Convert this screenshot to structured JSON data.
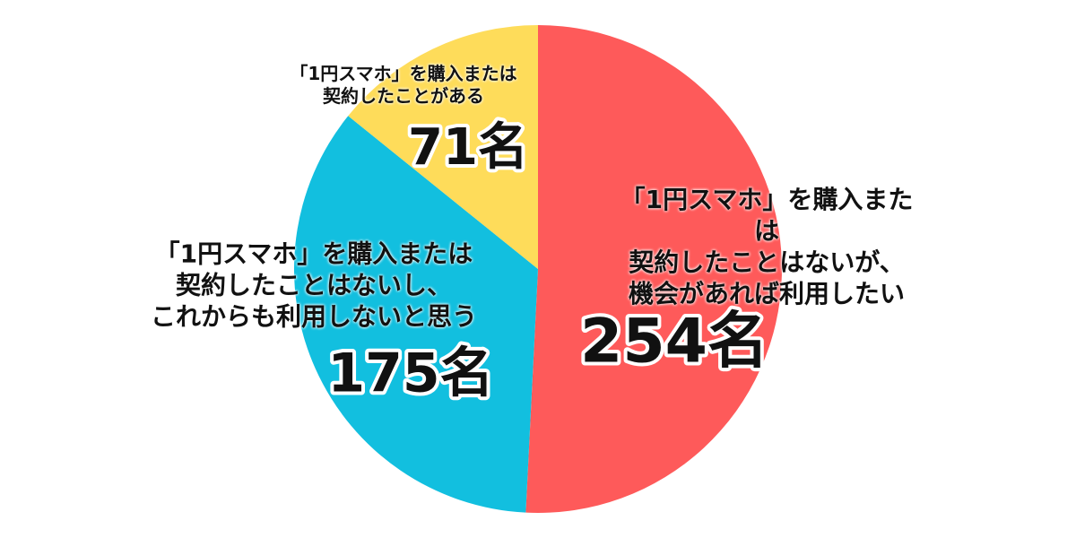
{
  "chart_data": {
    "type": "pie",
    "categories": [
      "「1円スマホ」を購入または\n契約したことはないが、\n機会があれば利用したい",
      "「1円スマホ」を購入または\n契約したことはないし、\nこれからも利用しないと思う",
      "「1円スマホ」を購入または\n契約したことがある"
    ],
    "values": [
      254,
      175,
      71
    ],
    "value_labels": [
      "254名",
      "175名",
      "71名"
    ],
    "colors": [
      "#fe5a5a",
      "#12bfdf",
      "#fedc5a"
    ]
  }
}
